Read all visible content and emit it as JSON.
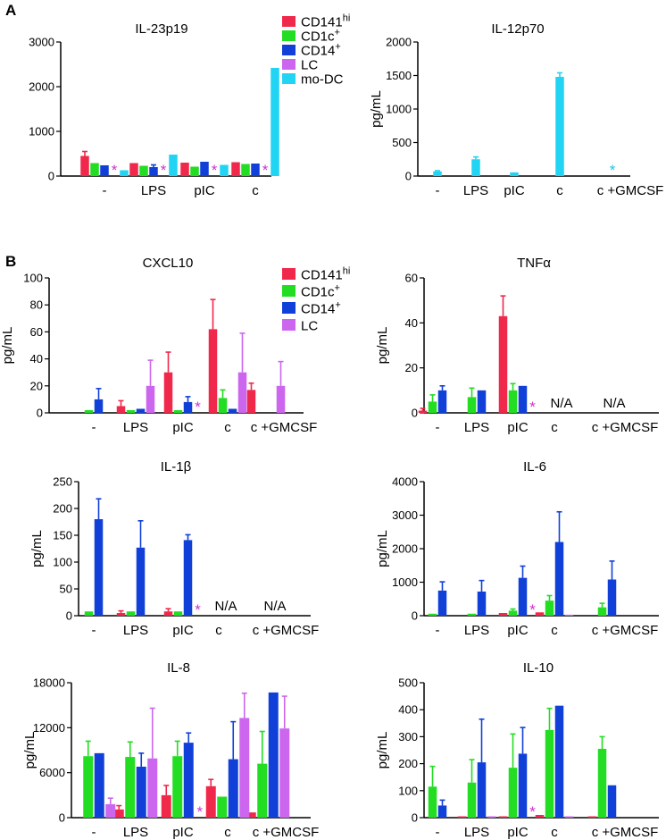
{
  "figure": {
    "panels": [
      {
        "label": "A"
      },
      {
        "label": "B"
      }
    ],
    "legends": [
      {
        "items": [
          {
            "name": "CD141",
            "sup": "hi",
            "color": "#f0284b"
          },
          {
            "name": "CD1c",
            "sup": "+",
            "color": "#22dd22"
          },
          {
            "name": "CD14",
            "sup": "+",
            "color": "#1040d8"
          },
          {
            "name": "LC",
            "sup": "",
            "color": "#cc66ee"
          },
          {
            "name": "mo-DC",
            "sup": "",
            "color": "#22d4f4"
          }
        ]
      },
      {
        "items": [
          {
            "name": "CD141",
            "sup": "hi",
            "color": "#f0284b"
          },
          {
            "name": "CD1c",
            "sup": "+",
            "color": "#22dd22"
          },
          {
            "name": "CD14",
            "sup": "+",
            "color": "#1040d8"
          },
          {
            "name": "LC",
            "sup": "",
            "color": "#cc66ee"
          }
        ]
      }
    ]
  },
  "chart_data": [
    {
      "type": "bar",
      "title": "IL-23p19",
      "ylabel": "",
      "ylim": [
        0,
        3000
      ],
      "yticks": [
        0,
        1000,
        2000,
        3000
      ],
      "categories": [
        "-",
        "LPS",
        "pIC",
        "c"
      ],
      "series": [
        {
          "name": "CD141hi",
          "values": [
            450,
            290,
            300,
            310
          ],
          "errors": [
            100,
            0,
            0,
            0
          ]
        },
        {
          "name": "CD1c+",
          "values": [
            290,
            230,
            210,
            270
          ],
          "errors": [
            0,
            0,
            0,
            0
          ]
        },
        {
          "name": "CD14+",
          "values": [
            240,
            200,
            320,
            280
          ],
          "errors": [
            0,
            50,
            0,
            0
          ]
        },
        {
          "name": "LC",
          "values": [
            null,
            null,
            null,
            null
          ],
          "errors": [
            0,
            0,
            0,
            0
          ]
        },
        {
          "name": "mo-DC",
          "values": [
            130,
            480,
            250,
            2420
          ],
          "errors": [
            0,
            0,
            0,
            0
          ]
        }
      ],
      "annotations": [
        {
          "text": "*",
          "category": 0,
          "series": 3,
          "color": "#cc33cc"
        },
        {
          "text": "*",
          "category": 1,
          "series": 3,
          "color": "#cc33cc"
        },
        {
          "text": "*",
          "category": 2,
          "series": 3,
          "color": "#cc33cc"
        },
        {
          "text": "*",
          "category": 3,
          "series": 3,
          "color": "#cc33cc"
        }
      ]
    },
    {
      "type": "bar",
      "title": "IL-12p70",
      "ylabel": "pg/mL",
      "ylim": [
        0,
        2000
      ],
      "yticks": [
        0,
        500,
        1000,
        1500,
        2000
      ],
      "categories": [
        "-",
        "LPS",
        "pIC",
        "c",
        "c +GMCSF"
      ],
      "series": [
        {
          "name": "mo-DC",
          "values": [
            70,
            250,
            55,
            1480,
            null
          ],
          "errors": [
            10,
            35,
            0,
            60,
            0
          ]
        }
      ],
      "annotations": [
        {
          "text": "*",
          "category": 4,
          "series": 0,
          "color": "#22c4e4"
        }
      ]
    },
    {
      "type": "bar",
      "title": "CXCL10",
      "ylabel": "pg/mL",
      "ylim": [
        0,
        100
      ],
      "yticks": [
        0,
        20,
        40,
        60,
        80,
        100
      ],
      "categories": [
        "-",
        "LPS",
        "pIC",
        "c",
        "c +GMCSF"
      ],
      "series": [
        {
          "name": "CD141hi",
          "values": [
            0,
            5,
            30,
            62,
            17
          ],
          "errors": [
            0,
            4,
            15,
            22,
            5
          ]
        },
        {
          "name": "CD1c+",
          "values": [
            2,
            2,
            2,
            11,
            0
          ],
          "errors": [
            0,
            0,
            0,
            6,
            0
          ]
        },
        {
          "name": "CD14+",
          "values": [
            10,
            3,
            8,
            3,
            0
          ],
          "errors": [
            8,
            0,
            4,
            0,
            0
          ]
        },
        {
          "name": "LC",
          "values": [
            0,
            20,
            null,
            30,
            20
          ],
          "errors": [
            0,
            19,
            0,
            29,
            18
          ]
        }
      ],
      "annotations": [
        {
          "text": "*",
          "category": 2,
          "series": 3,
          "color": "#cc33cc"
        }
      ]
    },
    {
      "type": "bar",
      "title": "TNFα",
      "ylabel": "pg/mL",
      "ylim": [
        0,
        60
      ],
      "yticks": [
        0,
        20,
        40,
        60
      ],
      "categories": [
        "-",
        "LPS",
        "pIC",
        "c",
        "c +GMCSF"
      ],
      "series": [
        {
          "name": "CD141hi",
          "values": [
            1,
            0,
            43,
            null,
            null
          ],
          "errors": [
            1,
            0,
            9,
            0,
            0
          ]
        },
        {
          "name": "CD1c+",
          "values": [
            5,
            7,
            10,
            null,
            null
          ],
          "errors": [
            3,
            4,
            3,
            0,
            0
          ]
        },
        {
          "name": "CD14+",
          "values": [
            10,
            10,
            12,
            null,
            null
          ],
          "errors": [
            2,
            0,
            0,
            0,
            0
          ]
        },
        {
          "name": "LC",
          "values": [
            0,
            0,
            null,
            null,
            null
          ],
          "errors": [
            0,
            0,
            0,
            0,
            0
          ]
        }
      ],
      "annotations": [
        {
          "text": "*",
          "category": 2,
          "series": 3,
          "color": "#cc33cc"
        },
        {
          "text": "N/A",
          "category": 3,
          "series": 1,
          "color": "#000000"
        },
        {
          "text": "N/A",
          "category": 4,
          "series": 1,
          "color": "#000000"
        }
      ]
    },
    {
      "type": "bar",
      "title": "IL-1β",
      "ylabel": "pg/mL",
      "ylim": [
        0,
        250
      ],
      "yticks": [
        0,
        50,
        100,
        150,
        200,
        250
      ],
      "categories": [
        "-",
        "LPS",
        "pIC",
        "c",
        "c +GMCSF"
      ],
      "series": [
        {
          "name": "CD141hi",
          "values": [
            0,
            5,
            8,
            null,
            null
          ],
          "errors": [
            0,
            4,
            5,
            0,
            0
          ]
        },
        {
          "name": "CD1c+",
          "values": [
            8,
            8,
            8,
            null,
            null
          ],
          "errors": [
            0,
            0,
            0,
            0,
            0
          ]
        },
        {
          "name": "CD14+",
          "values": [
            180,
            127,
            141,
            null,
            null
          ],
          "errors": [
            38,
            50,
            10,
            0,
            0
          ]
        },
        {
          "name": "LC",
          "values": [
            0,
            0,
            null,
            null,
            null
          ],
          "errors": [
            0,
            0,
            0,
            0,
            0
          ]
        }
      ],
      "annotations": [
        {
          "text": "*",
          "category": 2,
          "series": 3,
          "color": "#cc33cc"
        },
        {
          "text": "N/A",
          "category": 3,
          "series": 1,
          "color": "#000000"
        },
        {
          "text": "N/A",
          "category": 4,
          "series": 1,
          "color": "#000000"
        }
      ]
    },
    {
      "type": "bar",
      "title": "IL-6",
      "ylabel": "pg/mL",
      "ylim": [
        0,
        4000
      ],
      "yticks": [
        0,
        1000,
        2000,
        3000,
        4000
      ],
      "categories": [
        "-",
        "LPS",
        "pIC",
        "c",
        "c +GMCSF"
      ],
      "series": [
        {
          "name": "CD141hi",
          "values": [
            0,
            0,
            80,
            100,
            0
          ],
          "errors": [
            0,
            0,
            0,
            0,
            0
          ]
        },
        {
          "name": "CD1c+",
          "values": [
            60,
            60,
            150,
            450,
            250
          ],
          "errors": [
            0,
            0,
            50,
            150,
            120
          ]
        },
        {
          "name": "CD14+",
          "values": [
            750,
            720,
            1130,
            2200,
            1080
          ],
          "errors": [
            260,
            330,
            350,
            900,
            550
          ]
        },
        {
          "name": "LC",
          "values": [
            0,
            0,
            null,
            30,
            0
          ],
          "errors": [
            0,
            0,
            0,
            0,
            0
          ]
        }
      ],
      "annotations": [
        {
          "text": "*",
          "category": 2,
          "series": 3,
          "color": "#cc33cc"
        }
      ]
    },
    {
      "type": "bar",
      "title": "IL-8",
      "ylabel": "pg/mL",
      "ylim": [
        0,
        18000
      ],
      "yticks": [
        0,
        6000,
        12000,
        18000
      ],
      "categories": [
        "-",
        "LPS",
        "pIC",
        "c",
        "c +GMCSF"
      ],
      "series": [
        {
          "name": "CD141hi",
          "values": [
            0,
            1100,
            3000,
            4200,
            700
          ],
          "errors": [
            0,
            500,
            1300,
            900,
            0
          ]
        },
        {
          "name": "CD1c+",
          "values": [
            8200,
            8100,
            8200,
            2800,
            7200
          ],
          "errors": [
            2000,
            2000,
            2000,
            0,
            4300
          ]
        },
        {
          "name": "CD14+",
          "values": [
            8600,
            6800,
            10000,
            7800,
            16700
          ],
          "errors": [
            0,
            1800,
            1300,
            5000,
            0
          ]
        },
        {
          "name": "LC",
          "values": [
            1800,
            7900,
            null,
            13300,
            11900
          ],
          "errors": [
            800,
            6700,
            0,
            3300,
            4300
          ]
        }
      ],
      "annotations": [
        {
          "text": "*",
          "category": 2,
          "series": 3,
          "color": "#cc33cc"
        }
      ]
    },
    {
      "type": "bar",
      "title": "IL-10",
      "ylabel": "pg/mL",
      "ylim": [
        0,
        500
      ],
      "yticks": [
        0,
        100,
        200,
        300,
        400,
        500
      ],
      "categories": [
        "-",
        "LPS",
        "pIC",
        "c",
        "c +GMCSF"
      ],
      "series": [
        {
          "name": "CD141hi",
          "values": [
            0,
            5,
            5,
            10,
            5
          ],
          "errors": [
            0,
            0,
            0,
            0,
            0
          ]
        },
        {
          "name": "CD1c+",
          "values": [
            115,
            130,
            185,
            325,
            255
          ],
          "errors": [
            75,
            85,
            125,
            80,
            45
          ]
        },
        {
          "name": "CD14+",
          "values": [
            45,
            205,
            237,
            415,
            120
          ],
          "errors": [
            20,
            160,
            97,
            0,
            0
          ]
        },
        {
          "name": "LC",
          "values": [
            0,
            5,
            null,
            5,
            0
          ],
          "errors": [
            0,
            0,
            0,
            0,
            0
          ]
        }
      ],
      "annotations": [
        {
          "text": "*",
          "category": 2,
          "series": 3,
          "color": "#cc33cc"
        }
      ]
    }
  ]
}
